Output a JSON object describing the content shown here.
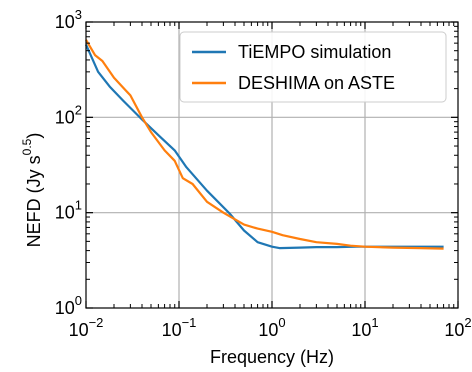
{
  "chart_data": {
    "type": "line",
    "xlabel": "Frequency (Hz)",
    "ylabel": {
      "main": "NEFD (Jy s",
      "exponent": "0.5",
      "close": ")"
    },
    "xscale": "log",
    "yscale": "log",
    "xlim": [
      0.01,
      100
    ],
    "ylim": [
      1,
      1000
    ],
    "grid": true,
    "legend_position": "top-right",
    "x_ticks": [
      {
        "value": 0.01,
        "base": "10",
        "exp": "−2"
      },
      {
        "value": 0.1,
        "base": "10",
        "exp": "−1"
      },
      {
        "value": 1,
        "base": "10",
        "exp": "0"
      },
      {
        "value": 10,
        "base": "10",
        "exp": "1"
      },
      {
        "value": 100,
        "base": "10",
        "exp": "2"
      }
    ],
    "y_ticks": [
      {
        "value": 1,
        "base": "10",
        "exp": "0"
      },
      {
        "value": 10,
        "base": "10",
        "exp": "1"
      },
      {
        "value": 100,
        "base": "10",
        "exp": "2"
      },
      {
        "value": 1000,
        "base": "10",
        "exp": "3"
      }
    ],
    "series": [
      {
        "name": "TiEMPO simulation",
        "color": "#1f77b4",
        "x": [
          0.01,
          0.0135,
          0.018,
          0.025,
          0.04,
          0.06,
          0.09,
          0.12,
          0.2,
          0.35,
          0.5,
          0.7,
          1.0,
          1.2,
          2,
          3,
          5,
          8,
          12,
          20,
          40,
          70
        ],
        "y": [
          580,
          300,
          210,
          150,
          95,
          65,
          45,
          30,
          17,
          9.8,
          6.5,
          4.9,
          4.4,
          4.25,
          4.3,
          4.35,
          4.35,
          4.4,
          4.4,
          4.4,
          4.4,
          4.4
        ]
      },
      {
        "name": "DESHIMA on ASTE",
        "color": "#ff7f0e",
        "x": [
          0.01,
          0.0125,
          0.015,
          0.02,
          0.03,
          0.04,
          0.05,
          0.07,
          0.09,
          0.11,
          0.14,
          0.2,
          0.3,
          0.5,
          0.7,
          1.0,
          1.3,
          2,
          3,
          5,
          7,
          10,
          20,
          40,
          70
        ],
        "y": [
          650,
          450,
          390,
          260,
          170,
          100,
          70,
          45,
          35,
          23,
          20,
          13,
          10,
          7.5,
          6.8,
          6.3,
          5.8,
          5.3,
          4.9,
          4.7,
          4.5,
          4.4,
          4.3,
          4.25,
          4.2
        ]
      }
    ]
  }
}
